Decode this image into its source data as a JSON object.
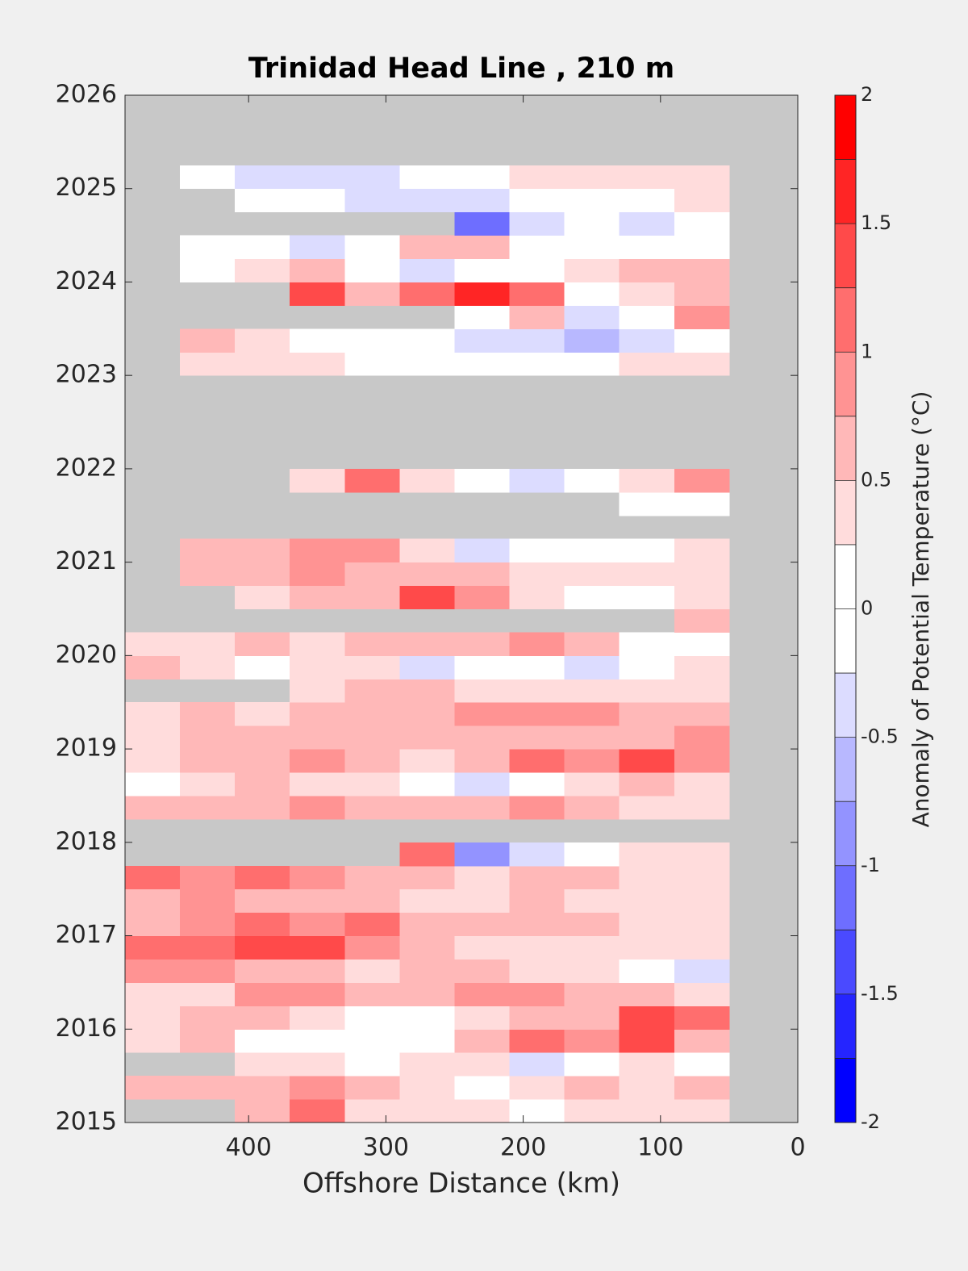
{
  "chart_data": {
    "type": "contour",
    "title": "Trinidad Head Line , 210 m",
    "xlabel": "Offshore Distance (km)",
    "colorbar_label": "Anomaly of Potential Temperature (°C)",
    "x": [
      470,
      430,
      390,
      350,
      310,
      270,
      230,
      190,
      150,
      110,
      70
    ],
    "y": [
      2015.125,
      2015.375,
      2015.625,
      2015.875,
      2016.125,
      2016.375,
      2016.625,
      2016.875,
      2017.125,
      2017.375,
      2017.625,
      2017.875,
      2018.125,
      2018.375,
      2018.625,
      2018.875,
      2019.125,
      2019.375,
      2019.625,
      2019.875,
      2020.125,
      2020.375,
      2020.625,
      2020.875,
      2021.125,
      2021.375,
      2021.625,
      2021.875,
      2022.125,
      2022.375,
      2022.625,
      2022.875,
      2023.125,
      2023.375,
      2023.625,
      2023.875,
      2024.125,
      2024.375,
      2024.625,
      2024.875,
      2025.125
    ],
    "z": [
      [
        null,
        null,
        0.5,
        1.0,
        0.4,
        0.3,
        0.3,
        0,
        0.3,
        0.3,
        0.4
      ],
      [
        0.6,
        0.7,
        0.5,
        0.8,
        0.5,
        0.3,
        0.2,
        0.3,
        0.5,
        0.3,
        0.6
      ],
      [
        null,
        null,
        0.3,
        0.4,
        0,
        0.3,
        0.4,
        -0.4,
        0.1,
        0.3,
        0
      ],
      [
        0.3,
        0.5,
        0.1,
        0,
        0,
        0,
        0.5,
        1.0,
        0.9,
        1.3,
        0.5
      ],
      [
        0.3,
        0.6,
        0.6,
        0.3,
        0,
        0.2,
        0.3,
        0.5,
        0.7,
        1.3,
        1.0
      ],
      [
        0.3,
        0.3,
        0.8,
        0.9,
        0.5,
        0.6,
        0.9,
        0.9,
        0.7,
        0.6,
        0.3
      ],
      [
        0.8,
        0.9,
        0.7,
        0.6,
        0.4,
        0.7,
        0.6,
        0.4,
        0.3,
        -0.2,
        -0.3
      ],
      [
        1.0,
        1.1,
        1.3,
        1.4,
        0.9,
        0.5,
        0.3,
        0.3,
        0.4,
        0.3,
        0.3
      ],
      [
        0.6,
        0.9,
        1.0,
        0.9,
        1.1,
        0.6,
        0.5,
        0.6,
        0.5,
        0.4,
        0.4
      ],
      [
        0.7,
        0.9,
        0.7,
        0.6,
        0.5,
        0.3,
        0.3,
        0.5,
        0.3,
        0.3,
        0.4
      ],
      [
        1.2,
        0.9,
        1.2,
        0.8,
        0.6,
        0.5,
        0.3,
        0.6,
        0.6,
        0.3,
        0.3
      ],
      [
        null,
        null,
        null,
        null,
        null,
        1.0,
        -1.0,
        -0.4,
        0.2,
        0.3,
        0.3
      ],
      [
        null,
        null,
        null,
        null,
        null,
        null,
        null,
        null,
        null,
        null,
        null
      ],
      [
        0.6,
        0.5,
        0.6,
        0.8,
        0.6,
        0.7,
        0.6,
        0.9,
        0.6,
        0.3,
        0.4
      ],
      [
        0,
        0.3,
        0.5,
        0.3,
        0.3,
        0.1,
        -0.3,
        -0.2,
        0.3,
        0.6,
        0.3
      ],
      [
        0.3,
        0.5,
        0.6,
        0.9,
        0.7,
        0.4,
        0.7,
        1.2,
        0.8,
        1.3,
        0.8
      ],
      [
        0.4,
        0.5,
        0.6,
        0.6,
        0.7,
        0.5,
        0.5,
        0.7,
        0.6,
        0.6,
        0.9
      ],
      [
        0.3,
        0.6,
        0.3,
        0.5,
        0.6,
        0.6,
        0.8,
        0.9,
        0.8,
        0.5,
        0.5
      ],
      [
        null,
        null,
        null,
        0.4,
        0.5,
        0.6,
        0.3,
        0.3,
        0.4,
        0.3,
        0.3
      ],
      [
        0.5,
        0.3,
        0.2,
        0.3,
        0.3,
        -0.3,
        0.1,
        0.2,
        -0.3,
        0.2,
        0.4
      ],
      [
        0.3,
        0.4,
        0.5,
        0.3,
        0.5,
        0.6,
        0.7,
        0.8,
        0.6,
        0.1,
        0.2
      ],
      [
        null,
        null,
        null,
        null,
        null,
        null,
        null,
        null,
        null,
        null,
        0.5
      ],
      [
        null,
        null,
        0.4,
        0.5,
        0.6,
        1.4,
        0.9,
        0.3,
        0,
        -0.2,
        0.3
      ],
      [
        null,
        0.5,
        0.6,
        0.8,
        0.6,
        0.7,
        0.6,
        0.4,
        0.3,
        0.3,
        0.4
      ],
      [
        null,
        0.5,
        0.6,
        0.8,
        0.9,
        0.3,
        -0.5,
        0.2,
        0,
        0.2,
        0.3
      ],
      [
        null,
        null,
        null,
        null,
        null,
        null,
        null,
        null,
        null,
        null,
        null
      ],
      [
        null,
        null,
        null,
        null,
        null,
        null,
        null,
        null,
        null,
        0,
        0
      ],
      [
        null,
        null,
        null,
        0.4,
        1.0,
        0.3,
        0,
        -0.4,
        0,
        0.4,
        0.8
      ],
      [
        null,
        null,
        null,
        null,
        null,
        null,
        null,
        null,
        null,
        null,
        null
      ],
      [
        null,
        null,
        null,
        null,
        null,
        null,
        null,
        null,
        null,
        null,
        null
      ],
      [
        null,
        null,
        null,
        null,
        null,
        null,
        null,
        null,
        null,
        null,
        null
      ],
      [
        null,
        null,
        null,
        null,
        null,
        null,
        null,
        null,
        null,
        null,
        null
      ],
      [
        null,
        0.4,
        0.4,
        0.3,
        0.2,
        0.1,
        0,
        -0.2,
        -0.1,
        0.4,
        0.3
      ],
      [
        null,
        0.5,
        0.3,
        0.2,
        0.1,
        0,
        -0.4,
        -0.5,
        -0.6,
        -0.3,
        0.1
      ],
      [
        null,
        null,
        null,
        null,
        null,
        null,
        0.2,
        0.5,
        -0.5,
        0.2,
        0.8
      ],
      [
        null,
        null,
        null,
        1.3,
        0.7,
        1.2,
        1.5,
        1.0,
        0.2,
        0.4,
        0.6
      ],
      [
        null,
        0.2,
        0.3,
        0.5,
        0,
        -0.3,
        0,
        0.1,
        0.3,
        0.5,
        0.7
      ],
      [
        null,
        0,
        -0.2,
        -0.4,
        0.1,
        0.5,
        0.6,
        0.1,
        -0.2,
        0.2,
        0.2
      ],
      [
        null,
        null,
        null,
        null,
        null,
        null,
        -1.2,
        -0.3,
        0,
        -0.3,
        0.2
      ],
      [
        null,
        null,
        0,
        -0.2,
        -0.3,
        -0.4,
        -0.4,
        -0.2,
        0,
        0.2,
        0.4
      ],
      [
        null,
        0,
        -0.3,
        -0.4,
        -0.3,
        0,
        0,
        0.4,
        0.3,
        0.4,
        0.3
      ]
    ],
    "xlim": [
      490,
      0
    ],
    "ylim": [
      2015,
      2026
    ],
    "xticks": [
      400,
      300,
      200,
      100,
      0
    ],
    "yticks": [
      2015,
      2016,
      2017,
      2018,
      2019,
      2020,
      2021,
      2022,
      2023,
      2024,
      2025,
      2026
    ],
    "levels": [
      -2,
      -1.75,
      -1.5,
      -1.25,
      -1,
      -0.75,
      -0.5,
      -0.25,
      0,
      0.25,
      0.5,
      0.75,
      1,
      1.25,
      1.5,
      1.75,
      2
    ],
    "colors": [
      "#0000ff",
      "#2525ff",
      "#4a4aff",
      "#6e6eff",
      "#9393ff",
      "#b8b8ff",
      "#dcdcff",
      "#ffffff",
      "#ffffff",
      "#ffdcdc",
      "#ffb8b8",
      "#ff9393",
      "#ff6e6e",
      "#ff4a4a",
      "#ff2525",
      "#ff0000"
    ],
    "colorbar_ticks": [
      -2,
      -1.5,
      -1,
      -0.5,
      0,
      0.5,
      1,
      1.5,
      2
    ],
    "missing_color": "#c8c8c8"
  }
}
